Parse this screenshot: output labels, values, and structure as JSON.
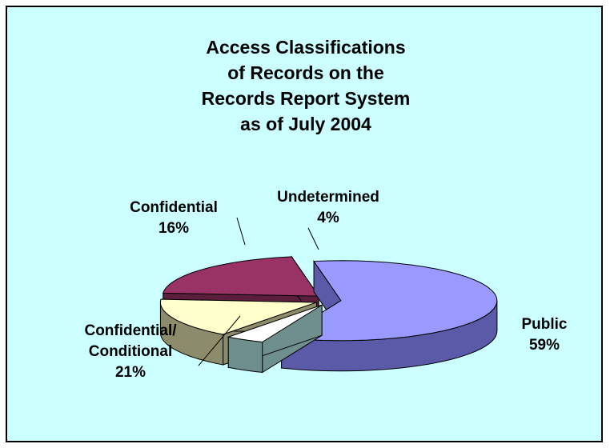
{
  "chart_data": {
    "type": "pie",
    "title_lines": [
      "Access Classifications",
      "of Records on the",
      "Records Report System",
      "as of July 2004"
    ],
    "slices": [
      {
        "label_lines": [
          "Public",
          "59%"
        ],
        "value": 59,
        "color": "#9999ff",
        "dark": "#5a5aa8",
        "exploded": true
      },
      {
        "label_lines": [
          "Undetermined",
          "4%"
        ],
        "value": 4,
        "color": "#ffffff",
        "dark": "#6f8f8f",
        "exploded": true
      },
      {
        "label_lines": [
          "Confidential",
          "16%"
        ],
        "value": 16,
        "color": "#ffffcc",
        "dark": "#8c8c6a",
        "exploded": true
      },
      {
        "label_lines": [
          "Confidential/",
          "Conditional",
          "21%"
        ],
        "value": 21,
        "color": "#993366",
        "dark": "#5c1e3d",
        "exploded": true
      }
    ],
    "style": "3d-exploded-pie",
    "legend": "none"
  }
}
